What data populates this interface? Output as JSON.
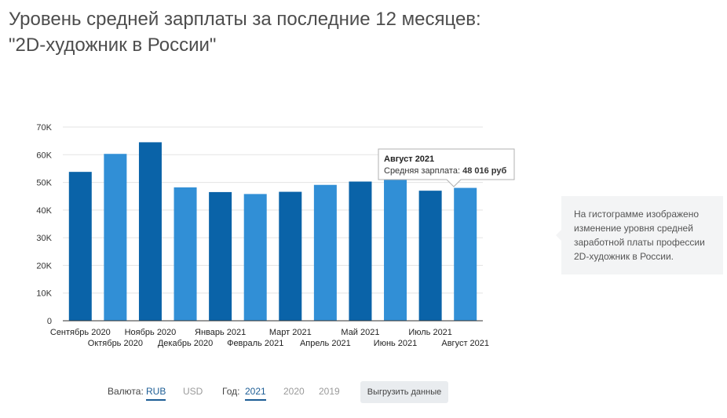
{
  "title_line1": "Уровень средней зарплаты за последние 12 месяцев:",
  "title_line2": "\"2D-художник в России\"",
  "chart_data": {
    "type": "bar",
    "categories": [
      "Сентябрь 2020",
      "Октябрь 2020",
      "Ноябрь 2020",
      "Декабрь 2020",
      "Январь 2021",
      "Февраль 2021",
      "Март 2021",
      "Апрель 2021",
      "Май 2021",
      "Июнь 2021",
      "Июль 2021",
      "Август 2021"
    ],
    "values": [
      53800,
      60300,
      64500,
      48200,
      46500,
      45800,
      46600,
      49100,
      50300,
      51000,
      47000,
      48016
    ],
    "colors": [
      "#0a63a8",
      "#318fd6",
      "#0a63a8",
      "#318fd6",
      "#0a63a8",
      "#318fd6",
      "#0a63a8",
      "#318fd6",
      "#0a63a8",
      "#318fd6",
      "#0a63a8",
      "#318fd6"
    ],
    "yticks": [
      0,
      10000,
      20000,
      30000,
      40000,
      50000,
      60000,
      70000
    ],
    "ytick_labels": [
      "0",
      "10K",
      "20K",
      "30K",
      "40K",
      "50K",
      "60K",
      "70K"
    ],
    "ylim": [
      0,
      70000
    ],
    "xlabel": "",
    "ylabel": "",
    "tooltip": {
      "title": "Август 2021",
      "label": "Средняя зарплата:",
      "value": "48 016 руб"
    }
  },
  "info_text": "На гистограмме изображено изменение уровня средней заработной платы профессии 2D-художник в России.",
  "controls": {
    "currency_label": "Валюта:",
    "currency_options": [
      "RUB",
      "USD"
    ],
    "currency_selected": "RUB",
    "year_label": "Год:",
    "year_options": [
      "2021",
      "2020",
      "2019"
    ],
    "year_selected": "2021",
    "export_label": "Выгрузить данные"
  }
}
